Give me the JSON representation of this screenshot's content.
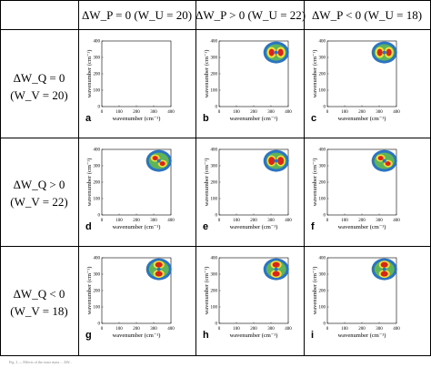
{
  "columns": [
    {
      "label": "ΔW_P = 0 (W_U = 20)"
    },
    {
      "label": "ΔW_P > 0 (W_U = 22)"
    },
    {
      "label": "ΔW_P < 0 (W_U = 18)"
    }
  ],
  "rows": [
    {
      "line1": "ΔW_Q = 0",
      "line2": "(W_V = 20)"
    },
    {
      "line1": "ΔW_Q > 0",
      "line2": "(W_V = 22)"
    },
    {
      "line1": "ΔW_Q < 0",
      "line2": "(W_V = 18)"
    }
  ],
  "panels": [
    {
      "letter": "a",
      "pattern": "none"
    },
    {
      "letter": "b",
      "pattern": "two-lobe-horizontal"
    },
    {
      "letter": "c",
      "pattern": "small-two-lobe"
    },
    {
      "letter": "d",
      "pattern": "rotated-four-lobe"
    },
    {
      "letter": "e",
      "pattern": "quad-lobe-red"
    },
    {
      "letter": "f",
      "pattern": "rotated-quad"
    },
    {
      "letter": "g",
      "pattern": "vertical-two-lobe"
    },
    {
      "letter": "h",
      "pattern": "two-lobe-vertical-soft"
    },
    {
      "letter": "i",
      "pattern": "vertical-red"
    }
  ],
  "axes": {
    "xlabel": "wavenumber (cm⁻¹)",
    "ylabel": "wavenumber (cm⁻¹)",
    "xticks": [
      "0",
      "100",
      "200",
      "300",
      "400"
    ],
    "yticks": [
      "0",
      "100",
      "200",
      "300",
      "400"
    ]
  },
  "colors": {
    "red": "#d62718",
    "yellow": "#f2e13c",
    "green": "#5fb35a",
    "blue": "#2a74c2"
  },
  "caption": "Fig. 2 — Effects of the exact mass ... ΔW..."
}
